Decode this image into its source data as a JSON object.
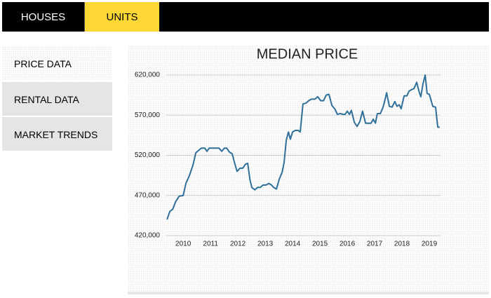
{
  "nav": {
    "tabs": [
      "HOUSES",
      "UNITS"
    ]
  },
  "sidebar": [
    "PRICE DATA",
    "RENTAL DATA",
    "MARKET TRENDS"
  ],
  "chart_data": {
    "type": "line",
    "title": "MEDIAN PRICE",
    "color": "#2f6f9a",
    "grid": true,
    "x": [
      2009.41,
      2009.51,
      2009.62,
      2009.72,
      2009.85,
      2010.0,
      2010.1,
      2010.23,
      2010.36,
      2010.46,
      2010.56,
      2010.67,
      2010.79,
      2010.87,
      2010.95,
      2011.13,
      2011.31,
      2011.41,
      2011.51,
      2011.59,
      2011.69,
      2011.79,
      2011.9,
      2011.97,
      2012.08,
      2012.18,
      2012.28,
      2012.36,
      2012.44,
      2012.51,
      2012.62,
      2012.72,
      2012.82,
      2012.92,
      2013.03,
      2013.13,
      2013.23,
      2013.31,
      2013.41,
      2013.51,
      2013.62,
      2013.69,
      2013.77,
      2013.85,
      2013.92,
      2014.0,
      2014.1,
      2014.21,
      2014.28,
      2014.38,
      2014.49,
      2014.59,
      2014.69,
      2014.82,
      2014.92,
      2015.03,
      2015.13,
      2015.23,
      2015.33,
      2015.44,
      2015.54,
      2015.64,
      2015.74,
      2015.85,
      2015.92,
      2016.0,
      2016.08,
      2016.15,
      2016.26,
      2016.36,
      2016.46,
      2016.56,
      2016.67,
      2016.77,
      2016.87,
      2016.95,
      2017.03,
      2017.1,
      2017.21,
      2017.31,
      2017.38,
      2017.44,
      2017.54,
      2017.64,
      2017.74,
      2017.82,
      2017.9,
      2017.97,
      2018.08,
      2018.18,
      2018.26,
      2018.36,
      2018.44,
      2018.54,
      2018.62,
      2018.69,
      2018.77,
      2018.85,
      2018.92,
      2019.0,
      2019.13,
      2019.23,
      2019.31,
      2019.38
    ],
    "values": [
      440000,
      450000,
      453000,
      462000,
      469000,
      470000,
      485000,
      495000,
      508000,
      523000,
      526000,
      529000,
      529000,
      525000,
      529000,
      529000,
      529000,
      525000,
      529000,
      529000,
      524000,
      522000,
      508000,
      500000,
      504000,
      504000,
      509000,
      510000,
      490000,
      480000,
      477000,
      480000,
      480000,
      483000,
      483000,
      485000,
      483000,
      480000,
      478000,
      490000,
      499000,
      511000,
      539000,
      549000,
      540000,
      549000,
      551000,
      551000,
      549000,
      584000,
      585000,
      588000,
      590000,
      590000,
      593000,
      588000,
      588000,
      595000,
      596000,
      582000,
      578000,
      571000,
      572000,
      571000,
      571000,
      575000,
      571000,
      576000,
      561000,
      556000,
      562000,
      575000,
      560000,
      560000,
      560000,
      565000,
      560000,
      572000,
      572000,
      580000,
      589000,
      598000,
      581000,
      580000,
      587000,
      581000,
      583000,
      578000,
      594000,
      594000,
      600000,
      602000,
      603000,
      611000,
      600000,
      593000,
      609000,
      620000,
      597000,
      596000,
      581000,
      580000,
      555000,
      555000
    ],
    "xlim": [
      2009.38,
      2019.41
    ],
    "xticks": [
      2010,
      2011,
      2012,
      2013,
      2014,
      2015,
      2016,
      2017,
      2018,
      2019
    ],
    "ylim": [
      420000,
      620000
    ],
    "yticks": [
      {
        "value": 420000,
        "label": "420,000"
      },
      {
        "value": 470000,
        "label": "470,000"
      },
      {
        "value": 520000,
        "label": "520,000"
      },
      {
        "value": 570000,
        "label": "570,000"
      },
      {
        "value": 620000,
        "label": "620,000"
      }
    ]
  }
}
